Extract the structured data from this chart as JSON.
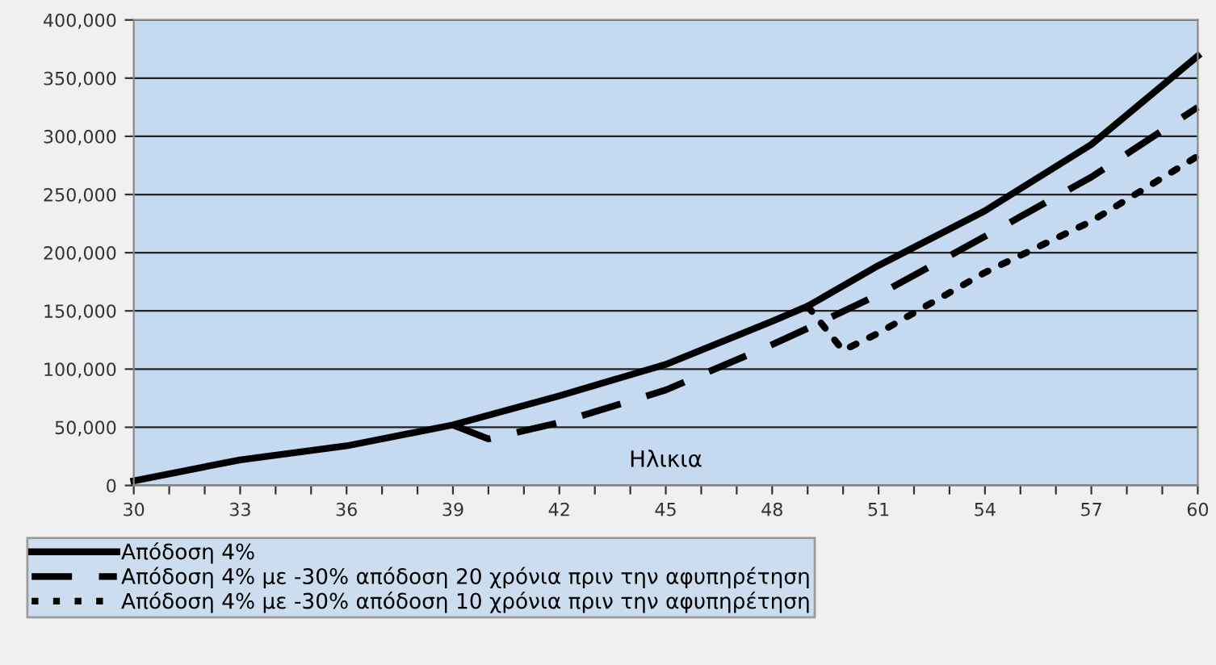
{
  "chart_data": {
    "type": "line",
    "xlabel": "Ηλικια",
    "xlim": [
      30,
      60
    ],
    "xticks": [
      30,
      {
        "value": 31,
        "label": null
      },
      {
        "value": 32,
        "label": null
      },
      33,
      {
        "value": 34,
        "label": null
      },
      {
        "value": 35,
        "label": null
      },
      36,
      {
        "value": 37,
        "label": null
      },
      {
        "value": 38,
        "label": null
      },
      39,
      {
        "value": 40,
        "label": null
      },
      {
        "value": 41,
        "label": null
      },
      42,
      {
        "value": 43,
        "label": null
      },
      {
        "value": 44,
        "label": null
      },
      45,
      {
        "value": 46,
        "label": null
      },
      {
        "value": 47,
        "label": null
      },
      48,
      {
        "value": 49,
        "label": null
      },
      {
        "value": 50,
        "label": null
      },
      51,
      {
        "value": 52,
        "label": null
      },
      {
        "value": 53,
        "label": null
      },
      54,
      {
        "value": 55,
        "label": null
      },
      {
        "value": 56,
        "label": null
      },
      57,
      {
        "value": 58,
        "label": null
      },
      {
        "value": 59,
        "label": null
      },
      60
    ],
    "ylim": [
      0,
      400000
    ],
    "yticks": [
      {
        "value": 0,
        "label": "0"
      },
      {
        "value": 50000,
        "label": "50,000"
      },
      {
        "value": 100000,
        "label": "100,000"
      },
      {
        "value": 150000,
        "label": "150,000"
      },
      {
        "value": 200000,
        "label": "200,000"
      },
      {
        "value": 250000,
        "label": "250,000"
      },
      {
        "value": 300000,
        "label": "300,000"
      },
      {
        "value": 350000,
        "label": "350,000"
      },
      {
        "value": 400000,
        "label": "400,000"
      }
    ],
    "grid": "y",
    "legend": "bottom left",
    "marker": "none",
    "series": [
      {
        "name": "Απόδοση 4%",
        "color": "#000000",
        "line_style": "solid",
        "x": [
          30,
          33,
          36,
          39,
          42,
          45,
          48,
          49,
          51,
          54,
          57,
          60
        ],
        "values": [
          4000,
          22000,
          34000,
          52000,
          77000,
          104000,
          141000,
          154000,
          189000,
          236000,
          293000,
          369000
        ]
      },
      {
        "name": "Απόδοση 4% με -30% απόδοση 20 χρόνια πριν την αφυπηρέτηση",
        "color": "#000000",
        "line_style": "dashed",
        "x": [
          39,
          40,
          42,
          45,
          48,
          49,
          51,
          54,
          57,
          60
        ],
        "values": [
          52000,
          40000,
          54000,
          82000,
          121000,
          135000,
          164000,
          214000,
          265000,
          325000
        ]
      },
      {
        "name": "Απόδοση 4% με -30% απόδοση 10 χρόνια πριν την αφυπηρέτηση",
        "color": "#000000",
        "line_style": "dotted",
        "x": [
          49,
          50,
          51,
          54,
          57,
          60
        ],
        "values": [
          154000,
          116000,
          131000,
          183000,
          227000,
          283000
        ]
      }
    ]
  }
}
